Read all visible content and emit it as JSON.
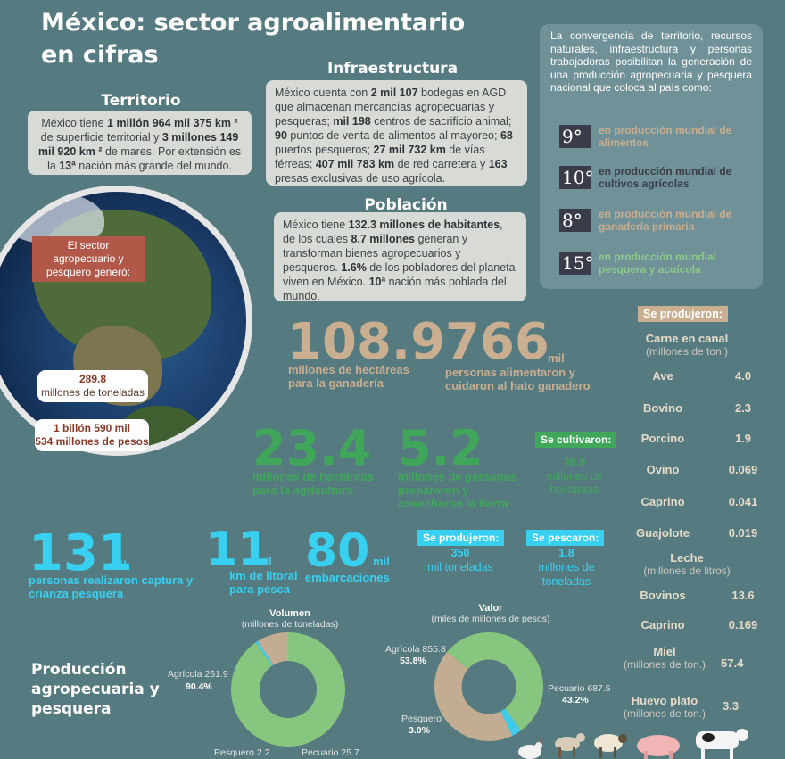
{
  "title": "México: sector agroalimentario en cifras",
  "territorio": {
    "heading": "Territorio",
    "text_html": "México tiene <b>1 millón 964 mil 375 km ²</b> de superficie territorial y <b>3 millones 149 mil 920  km ²</b>  de mares. Por extensión es la <b>13ª</b> nación más grande del mundo."
  },
  "infraestructura": {
    "heading": "Infraestructura",
    "text_html": "México cuenta con <b>2 mil 107</b> bodegas en AGD que almacenan mercancías agropecuarias y pesqueras; <b>mil 198</b> centros de sacrificio animal; <b>90</b> puntos de venta de alimentos al mayoreo; <b>68</b> puertos  pesqueros; <b>27 mil 732 km</b> de vías férreas;  <b>407 mil 783 km</b> de red carretera y <b>163</b> presas exclusivas de uso agrícola."
  },
  "poblacion": {
    "heading": "Población",
    "text_html": "México tiene <b>132.3 millones de  habitantes</b>, de los cuales  <b>8.7 millones</b> generan y transforman bienes  agropecuarios y pesqueros. <b>1.6%</b> de los  pobladores del planeta viven en  México. <b>10ª</b> nación más poblada del mundo."
  },
  "convergencia": {
    "text": "La convergencia de territorio, recursos naturales, infraestructura y personas trabajadoras posibilitan la generación de una producción agropecuaria y pesquera nacional que coloca al país como:",
    "ranks": [
      {
        "num": "9°",
        "label": "en producción mundial de alimentos",
        "color": "#c9ae90"
      },
      {
        "num": "10°",
        "label": "en producción mundial de cultivos agrícolas",
        "color": "#3a3d49"
      },
      {
        "num": "8°",
        "label": "en producción mundial de ganadería primaria",
        "color": "#c9ae90"
      },
      {
        "num": "15°",
        "label": "en producción mundial pesquera y acuícola",
        "color": "#8cc98a"
      }
    ]
  },
  "earth": {
    "banner": "El sector agropecuario y pesquero generó:",
    "tons_value": "289.8",
    "tons_unit": "millones de toneladas",
    "pesos_line1": "1 billón 590 mil",
    "pesos_line2": "534 millones de pesos"
  },
  "stats": {
    "s1": {
      "value": "108.9",
      "suffix": "",
      "label": "millones de hectáreas para la ganadería"
    },
    "s2": {
      "value": "766",
      "suffix": "mil",
      "label": "personas alimentaron y cuidaron al hato ganadero"
    },
    "s3": {
      "value": "23.4",
      "suffix": "",
      "label": "millones de hectáreas para la agricultura"
    },
    "s4": {
      "value": "5.2",
      "suffix": "",
      "label": "millones de personas prepararon y cosecharon la tierra"
    },
    "s5": {
      "value": "131",
      "suffix": "mil",
      "label": "personas realizaron captura y crianza pesquera"
    },
    "s6": {
      "value": "11",
      "suffix": "mil",
      "label": "km de litoral para pesca"
    },
    "s7": {
      "value": "80",
      "suffix": "mil",
      "label": "embarcaciones"
    }
  },
  "cultivaron": {
    "tag": "Se cultivaron:",
    "value": "20.0",
    "unit": "millones de hectáreas"
  },
  "produjeron_pesca": {
    "tag": "Se produjeron:",
    "value": "350",
    "unit": "mil toneladas"
  },
  "pescaron": {
    "tag": "Se pescaron:",
    "value": "1.8",
    "unit": "millones de toneladas"
  },
  "produccion": {
    "tag": "Se produjeron:",
    "carne_heading": "Carne en canal",
    "carne_unit": "(millones de ton.)",
    "carne": [
      {
        "name": "Ave",
        "value": "4.0"
      },
      {
        "name": "Bovino",
        "value": "2.3"
      },
      {
        "name": "Porcino",
        "value": "1.9"
      },
      {
        "name": "Ovino",
        "value": "0.069"
      },
      {
        "name": "Caprino",
        "value": "0.041"
      },
      {
        "name": "Guajolote",
        "value": "0.019"
      }
    ],
    "leche_heading": "Leche",
    "leche_unit": "(millones de litros)",
    "leche": [
      {
        "name": "Bovinos",
        "value": "13.6"
      },
      {
        "name": "Caprino",
        "value": "0.169"
      }
    ],
    "miel_heading": "Miel",
    "miel_unit": "(millones de ton.)",
    "miel_value": "57.4",
    "huevo_heading": "Huevo plato",
    "huevo_unit": "(millones de ton.)",
    "huevo_value": "3.3"
  },
  "prod_title": "Producción agropecuaria y pesquera",
  "chart_data": [
    {
      "type": "pie",
      "title": "Volumen",
      "subtitle": "(millones de toneladas)",
      "labels": [
        "Agrícola",
        "Pesquero",
        "Pecuario"
      ],
      "values": [
        261.9,
        2.2,
        25.7
      ],
      "percent_labels": [
        "90.4%",
        "",
        ""
      ],
      "colors": [
        "#86c67e",
        "#3fcbea",
        "#c2ad93"
      ],
      "donut": true
    },
    {
      "type": "pie",
      "title": "Valor",
      "subtitle": "(miles de millones de pesos)",
      "labels": [
        "Agrícola",
        "Pesquero",
        "Pecuario"
      ],
      "values": [
        855.8,
        47.2,
        687.5
      ],
      "percent_labels": [
        "53.8%",
        "3.0%",
        "43.2%"
      ],
      "colors": [
        "#86c67e",
        "#3fcbea",
        "#c2ad93"
      ],
      "donut": true
    }
  ],
  "chart_text": {
    "vol_agricola": "Agrícola 261.9",
    "vol_agricola_pct": "90.4%",
    "vol_pesquero": "Pesquero 2.2",
    "vol_pecuario": "Pecuario 25.7",
    "val_agricola": "Agrícola 855.8",
    "val_agricola_pct": "53.8%",
    "val_pesquero": "Pesquero",
    "val_pesquero_pct": "3.0%",
    "val_pecuario": "Pecuario 687.5",
    "val_pecuario_pct": "43.2%"
  },
  "colors": {
    "background": "#557a80",
    "tan": "#c9ae90",
    "green": "#40a65a",
    "cyan": "#38d0f0",
    "box": "#d8dad6"
  },
  "icons": [
    "chicken-icon",
    "goat-icon",
    "sheep-icon",
    "pig-icon",
    "cow-icon"
  ]
}
